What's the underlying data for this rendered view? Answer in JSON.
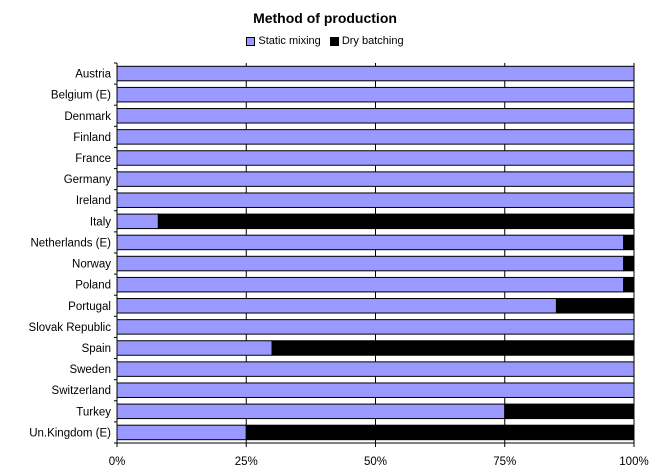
{
  "chart_data": {
    "type": "bar",
    "orientation": "horizontal",
    "stacked": "percent",
    "title": "Method of production",
    "legend_position": "top",
    "categories": [
      "Austria",
      "Belgium (E)",
      "Denmark",
      "Finland",
      "France",
      "Germany",
      "Ireland",
      "Italy",
      "Netherlands (E)",
      "Norway",
      "Poland",
      "Portugal",
      "Slovak Republic",
      "Spain",
      "Sweden",
      "Switzerland",
      "Turkey",
      "Un.Kingdom (E)"
    ],
    "series": [
      {
        "name": "Static mixing",
        "color": "#9999ff",
        "values": [
          100,
          100,
          100,
          100,
          100,
          100,
          100,
          8,
          98,
          98,
          98,
          85,
          100,
          30,
          100,
          100,
          75,
          25
        ]
      },
      {
        "name": "Dry batching",
        "color": "#000000",
        "values": [
          0,
          0,
          0,
          0,
          0,
          0,
          0,
          92,
          2,
          2,
          2,
          15,
          0,
          70,
          0,
          0,
          25,
          75
        ]
      }
    ],
    "x_ticks": [
      "0%",
      "25%",
      "50%",
      "75%",
      "100%"
    ],
    "xlim": [
      0,
      100
    ],
    "grid": "vertical"
  }
}
